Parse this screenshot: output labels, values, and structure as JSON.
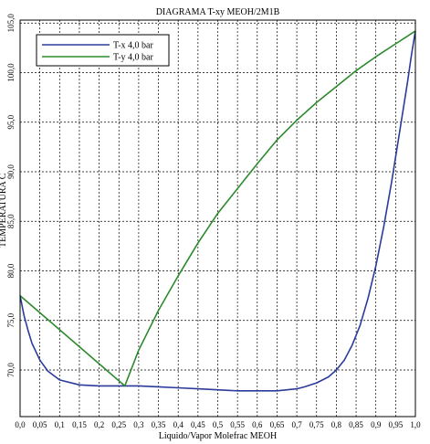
{
  "chart_data": {
    "type": "line",
    "title": "DIAGRAMA T-xy MEOH/2M1B",
    "xlabel": "Liquido/Vapor Molefrac MEOH",
    "ylabel": "TEMPERATURA C",
    "xlim": [
      0,
      1
    ],
    "ylim": [
      65.3,
      105.3
    ],
    "x_ticks": [
      "0,0",
      "0,05",
      "0,1",
      "0,15",
      "0,2",
      "0,25",
      "0,3",
      "0,35",
      "0,4",
      "0,45",
      "0,5",
      "0,55",
      "0,6",
      "0,65",
      "0,7",
      "0,75",
      "0,8",
      "0,85",
      "0,9",
      "0,95",
      "1,0"
    ],
    "y_ticks": [
      {
        "value": 70,
        "label": "70,0"
      },
      {
        "value": 75,
        "label": "75,0"
      },
      {
        "value": 80,
        "label": "80,0"
      },
      {
        "value": 85,
        "label": "85,0"
      },
      {
        "value": 90,
        "label": "90,0"
      },
      {
        "value": 95,
        "label": "95,0"
      },
      {
        "value": 100,
        "label": "100,0"
      },
      {
        "value": 105,
        "label": "105,0"
      }
    ],
    "grid": true,
    "legend_position": "top-left",
    "series": [
      {
        "name": "T-x  4,0 bar",
        "color": "#2b3b9b",
        "x": [
          0,
          0.01,
          0.02,
          0.03,
          0.05,
          0.07,
          0.1,
          0.15,
          0.2,
          0.25,
          0.3,
          0.35,
          0.4,
          0.45,
          0.5,
          0.55,
          0.6,
          0.65,
          0.7,
          0.72,
          0.75,
          0.78,
          0.8,
          0.82,
          0.84,
          0.86,
          0.88,
          0.9,
          0.92,
          0.94,
          0.96,
          0.98,
          0.99,
          1.0
        ],
        "y": [
          77.5,
          75.5,
          74.0,
          72.7,
          71.0,
          69.9,
          69.0,
          68.5,
          68.4,
          68.4,
          68.4,
          68.3,
          68.2,
          68.1,
          68.0,
          67.9,
          67.9,
          67.9,
          68.1,
          68.3,
          68.7,
          69.3,
          70.0,
          71.0,
          72.5,
          74.5,
          77.2,
          80.5,
          84.5,
          89.0,
          94.0,
          99.0,
          101.8,
          104.2
        ]
      },
      {
        "name": "T-y  4,0 bar",
        "color": "#2c8a2c",
        "x": [
          0,
          0.265,
          0.3,
          0.35,
          0.4,
          0.45,
          0.5,
          0.55,
          0.6,
          0.65,
          0.7,
          0.75,
          0.8,
          0.85,
          0.9,
          0.95,
          1.0
        ],
        "y": [
          77.5,
          68.4,
          72.0,
          76.0,
          79.5,
          82.8,
          85.8,
          88.3,
          90.8,
          93.2,
          95.2,
          97.0,
          98.6,
          100.2,
          101.6,
          102.9,
          104.2
        ]
      }
    ]
  }
}
